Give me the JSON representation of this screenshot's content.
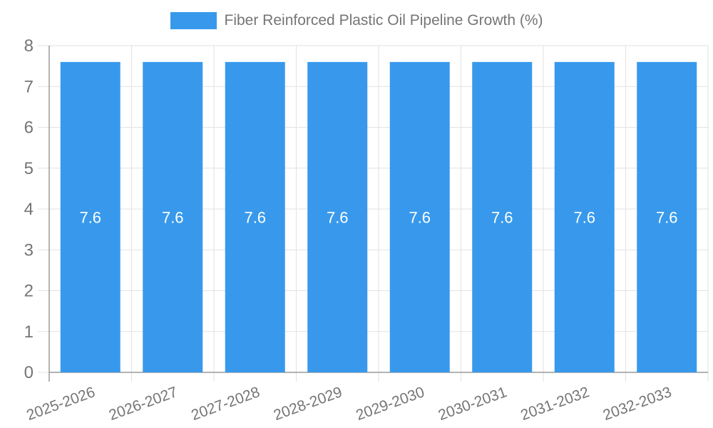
{
  "legend": {
    "label": "Fiber Reinforced Plastic Oil Pipeline Growth (%)"
  },
  "chart_data": {
    "type": "bar",
    "title": "",
    "categories": [
      "2025-2026",
      "2026-2027",
      "2027-2028",
      "2028-2029",
      "2029-2030",
      "2030-2031",
      "2031-2032",
      "2032-2033"
    ],
    "series": [
      {
        "name": "Fiber Reinforced Plastic Oil Pipeline Growth (%)",
        "values": [
          7.6,
          7.6,
          7.6,
          7.6,
          7.6,
          7.6,
          7.6,
          7.6
        ]
      }
    ],
    "bar_value_labels": [
      "7.6",
      "7.6",
      "7.6",
      "7.6",
      "7.6",
      "7.6",
      "7.6",
      "7.6"
    ],
    "xlabel": "",
    "ylabel": "",
    "ylim": [
      0,
      8
    ],
    "ytick_step": 1,
    "ytick_labels": [
      "0",
      "1",
      "2",
      "3",
      "4",
      "5",
      "6",
      "7",
      "8"
    ],
    "grid": true,
    "legend_position": "top-center",
    "x_label_rotation_deg": -20,
    "colors": {
      "bar": "#3899EC",
      "grid": "#E2E2E2",
      "axis": "#9A9A9A",
      "tick_text": "#757575",
      "bar_label": "#FFFFFF",
      "background": "#FFFFFF"
    }
  }
}
